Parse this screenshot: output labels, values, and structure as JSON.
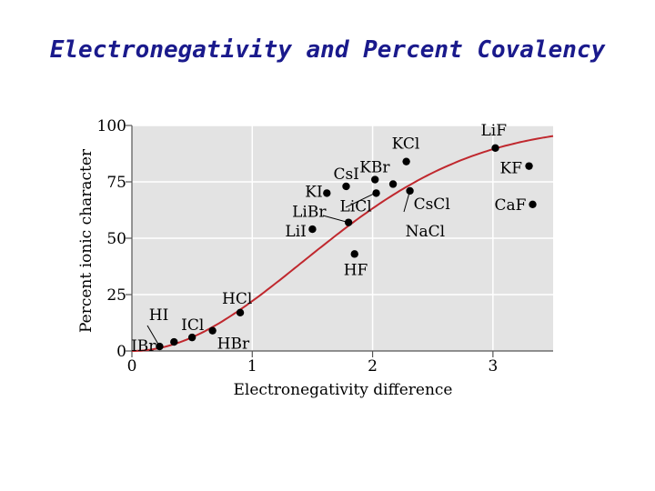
{
  "slide": {
    "title": "Electronegativity and Percent Covalency"
  },
  "colors": {
    "plot_bg": "#e3e3e3",
    "grid": "#ffffff",
    "curve": "#c0282e",
    "points": "#000000",
    "axis": "#555555"
  },
  "chart_data": {
    "type": "scatter",
    "title": "",
    "xlabel": "Electronegativity difference",
    "ylabel": "Percent ionic character",
    "xlim": [
      0,
      3.5
    ],
    "ylim": [
      0,
      100
    ],
    "xticks": [
      "0",
      "1",
      "2",
      "3"
    ],
    "yticks": [
      "0",
      "25",
      "50",
      "75",
      "100"
    ],
    "grid": true,
    "points": [
      {
        "label": "IBr",
        "x": 0.23,
        "y": 2
      },
      {
        "label": "HI",
        "x": 0.35,
        "y": 4
      },
      {
        "label": "ICl",
        "x": 0.5,
        "y": 6
      },
      {
        "label": "HBr",
        "x": 0.67,
        "y": 9
      },
      {
        "label": "HCl",
        "x": 0.9,
        "y": 17
      },
      {
        "label": "LiI",
        "x": 1.5,
        "y": 54
      },
      {
        "label": "KI",
        "x": 1.62,
        "y": 70
      },
      {
        "label": "LiBr",
        "x": 1.8,
        "y": 57
      },
      {
        "label": "CsI",
        "x": 1.78,
        "y": 73
      },
      {
        "label": "HF",
        "x": 1.85,
        "y": 43
      },
      {
        "label": "KBr",
        "x": 2.02,
        "y": 76
      },
      {
        "label": "LiCl",
        "x": 2.03,
        "y": 70
      },
      {
        "label": "KCl",
        "x": 2.28,
        "y": 84
      },
      {
        "label": "",
        "x": 2.17,
        "y": 74
      },
      {
        "label": "CsCl",
        "x": 2.31,
        "y": 71
      },
      {
        "label": "NaCl",
        "x": 2.31,
        "y": 71
      },
      {
        "label": "LiF",
        "x": 3.02,
        "y": 90
      },
      {
        "label": "KF",
        "x": 3.3,
        "y": 82
      },
      {
        "label": "CaF",
        "x": 3.33,
        "y": 65
      }
    ]
  }
}
